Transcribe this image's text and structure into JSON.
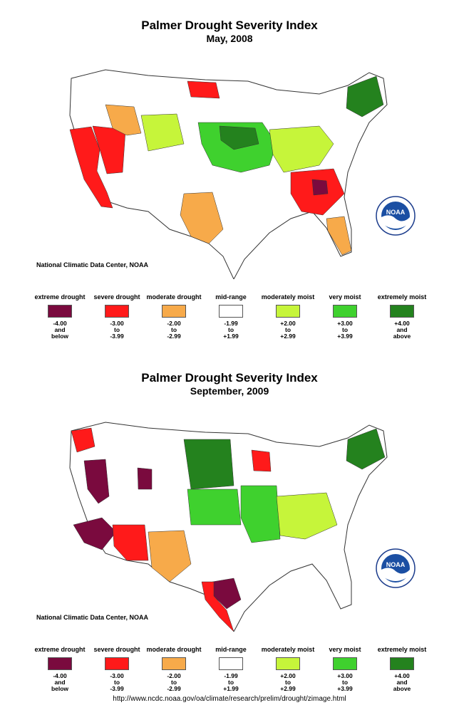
{
  "source_url": "http://www.ncdc.noaa.gov/oa/climate/research/prelim/drought/zimage.html",
  "colors": {
    "extreme_drought": "#7a0a3e",
    "severe_drought": "#ff1a1a",
    "moderate_drought": "#f7aa4a",
    "mid_range": "#ffffff",
    "moderately_moist": "#c6f53a",
    "very_moist": "#3fd12e",
    "extremely_moist": "#24821e"
  },
  "legend": [
    {
      "label": "extreme drought",
      "range": [
        "-4.00",
        "and",
        "below"
      ],
      "color_key": "extreme_drought"
    },
    {
      "label": "severe drought",
      "range": [
        "-3.00",
        "to",
        "-3.99"
      ],
      "color_key": "severe_drought"
    },
    {
      "label": "moderate drought",
      "range": [
        "-2.00",
        "to",
        "-2.99"
      ],
      "color_key": "moderate_drought"
    },
    {
      "label": "mid-range",
      "range": [
        "-1.99",
        "to",
        "+1.99"
      ],
      "color_key": "mid_range"
    },
    {
      "label": "moderately moist",
      "range": [
        "+2.00",
        "to",
        "+2.99"
      ],
      "color_key": "moderately_moist"
    },
    {
      "label": "very moist",
      "range": [
        "+3.00",
        "to",
        "+3.99"
      ],
      "color_key": "very_moist"
    },
    {
      "label": "extremely moist",
      "range": [
        "+4.00",
        "and",
        "above"
      ],
      "color_key": "extremely_moist"
    }
  ],
  "maps": [
    {
      "title": "Palmer Drought Severity Index",
      "subtitle": "May, 2008",
      "credit": "National Climatic Data Center, NOAA",
      "logo_text": "NOAA",
      "regions": [
        {
          "name": "Northern California / Oregon",
          "category": "severe_drought"
        },
        {
          "name": "Southern California",
          "category": "severe_drought"
        },
        {
          "name": "Nevada",
          "category": "severe_drought"
        },
        {
          "name": "North Dakota",
          "category": "severe_drought"
        },
        {
          "name": "Southeast (Georgia / Carolinas)",
          "category": "severe_drought"
        },
        {
          "name": "Southeast core",
          "category": "extreme_drought"
        },
        {
          "name": "Central Plains / Midwest",
          "category": "very_moist"
        },
        {
          "name": "Ohio Valley",
          "category": "moderately_moist"
        },
        {
          "name": "Northeast",
          "category": "extremely_moist"
        },
        {
          "name": "Texas / Florida",
          "category": "moderate_drought"
        }
      ]
    },
    {
      "title": "Palmer Drought Severity Index",
      "subtitle": "September, 2009",
      "credit": "National Climatic Data Center, NOAA",
      "logo_text": "NOAA",
      "regions": [
        {
          "name": "Northern Great Plains",
          "category": "extremely_moist"
        },
        {
          "name": "Midwest / Ohio Valley",
          "category": "moderately_moist"
        },
        {
          "name": "Southern California",
          "category": "extreme_drought"
        },
        {
          "name": "Nevada",
          "category": "extreme_drought"
        },
        {
          "name": "Arizona",
          "category": "severe_drought"
        },
        {
          "name": "South Texas",
          "category": "extreme_drought"
        },
        {
          "name": "Wisconsin",
          "category": "severe_drought"
        },
        {
          "name": "Mississippi Valley",
          "category": "very_moist"
        },
        {
          "name": "Northeast",
          "category": "extremely_moist"
        }
      ]
    }
  ]
}
